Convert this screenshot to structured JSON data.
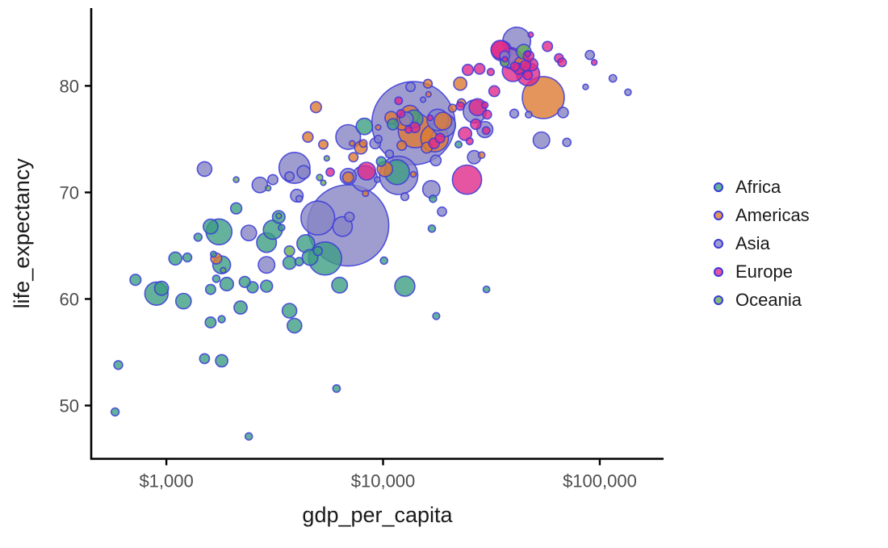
{
  "chart_data": {
    "type": "scatter",
    "title": "",
    "xlabel": "gdp_per_capita",
    "ylabel": "life_expectancy",
    "x_scale": "log10",
    "grid": false,
    "legend_position": "right",
    "xlim": [
      450,
      197000
    ],
    "ylim": [
      45.0,
      87.3
    ],
    "x_ticks": [
      {
        "value": 1000,
        "label": "$1,000"
      },
      {
        "value": 10000,
        "label": "$10,000"
      },
      {
        "value": 100000,
        "label": "$100,000"
      }
    ],
    "y_ticks": [
      {
        "value": 50,
        "label": "50"
      },
      {
        "value": 60,
        "label": "60"
      },
      {
        "value": 70,
        "label": "70"
      },
      {
        "value": 80,
        "label": "80"
      }
    ],
    "groups": [
      {
        "name": "Africa",
        "color": "#3D9E83"
      },
      {
        "name": "Americas",
        "color": "#DD7B33"
      },
      {
        "name": "Asia",
        "color": "#8785C4"
      },
      {
        "name": "Europe",
        "color": "#DE2A8A"
      },
      {
        "name": "Oceania",
        "color": "#66AC53"
      }
    ],
    "marker_stroke_color": "#3A3AD9",
    "marker_fill_opacity": 0.8,
    "point_fields": [
      "gdp_per_capita",
      "life_expectancy",
      "radius_px",
      "group_index"
    ],
    "points": [
      [
        5400,
        63.8,
        20.5,
        0
      ],
      [
        1750,
        66.3,
        16,
        0
      ],
      [
        11600,
        71.9,
        15.4,
        0
      ],
      [
        900,
        60.5,
        14.4,
        0
      ],
      [
        2900,
        65.3,
        12.2,
        0
      ],
      [
        12600,
        61.2,
        12.4,
        0
      ],
      [
        3100,
        66.5,
        11.8,
        0
      ],
      [
        1800,
        63.2,
        11,
        0
      ],
      [
        13900,
        76.9,
        11,
        0
      ],
      [
        4400,
        65.2,
        11,
        0
      ],
      [
        8200,
        76.2,
        10.2,
        0
      ],
      [
        6300,
        61.3,
        9.7,
        0
      ],
      [
        1200,
        59.8,
        9.6,
        0
      ],
      [
        4600,
        63.9,
        9.7,
        0
      ],
      [
        1600,
        66.8,
        9.1,
        0
      ],
      [
        3700,
        58.9,
        9,
        0
      ],
      [
        3900,
        57.5,
        9,
        0
      ],
      [
        950,
        61.0,
        8.6,
        0
      ],
      [
        1900,
        61.4,
        8.3,
        0
      ],
      [
        2200,
        59.2,
        8.1,
        0
      ],
      [
        1100,
        63.8,
        8,
        0
      ],
      [
        3700,
        63.4,
        8,
        0
      ],
      [
        3300,
        67.7,
        7.8,
        0
      ],
      [
        1800,
        54.2,
        7.6,
        0
      ],
      [
        600,
        53.8,
        5.4,
        0
      ],
      [
        2900,
        61.2,
        7.4,
        0
      ],
      [
        2500,
        61.1,
        6.9,
        0
      ],
      [
        2100,
        68.5,
        6.9,
        0
      ],
      [
        2300,
        61.6,
        6.8,
        0
      ],
      [
        720,
        61.8,
        6.8,
        0
      ],
      [
        11100,
        76.4,
        6.9,
        0
      ],
      [
        1600,
        57.8,
        6.7,
        0
      ],
      [
        1600,
        60.9,
        6.2,
        0
      ],
      [
        1500,
        54.4,
        6.1,
        0
      ],
      [
        9800,
        72.9,
        5.9,
        0
      ],
      [
        5000,
        64.5,
        5.5,
        0
      ],
      [
        1250,
        63.9,
        5.4,
        0
      ],
      [
        580,
        49.4,
        4.9,
        0
      ],
      [
        4100,
        63.5,
        5.1,
        0
      ],
      [
        1400,
        65.8,
        4.9,
        0
      ],
      [
        10100,
        63.6,
        4.5,
        0
      ],
      [
        1700,
        61.9,
        4.5,
        0
      ],
      [
        17000,
        69.4,
        4.5,
        0
      ],
      [
        16800,
        66.6,
        4.5,
        0
      ],
      [
        2400,
        47.1,
        4.5,
        0
      ],
      [
        1800,
        58.1,
        4.4,
        0
      ],
      [
        30000,
        60.9,
        4.1,
        0
      ],
      [
        17600,
        58.4,
        4.3,
        0
      ],
      [
        22300,
        74.5,
        4.2,
        0
      ],
      [
        6100,
        51.6,
        4.6,
        0
      ],
      [
        3400,
        66.7,
        4,
        0
      ],
      [
        1650,
        64.2,
        3.7,
        0
      ],
      [
        54900,
        78.9,
        26,
        1
      ],
      [
        14100,
        75.8,
        21.3,
        1
      ],
      [
        17300,
        75.1,
        17.1,
        1
      ],
      [
        13300,
        77.3,
        11.4,
        1
      ],
      [
        18900,
        76.7,
        10.9,
        1
      ],
      [
        44000,
        82.0,
        10.4,
        1
      ],
      [
        12300,
        76.6,
        9.9,
        1
      ],
      [
        10200,
        72.2,
        9.5,
        1
      ],
      [
        22700,
        80.2,
        8.1,
        1
      ],
      [
        7900,
        74.2,
        7.8,
        1
      ],
      [
        10900,
        77.0,
        7.8,
        1
      ],
      [
        6900,
        71.4,
        6.8,
        1
      ],
      [
        4900,
        78.0,
        6.8,
        1
      ],
      [
        1700,
        63.8,
        6.8,
        1
      ],
      [
        15900,
        74.2,
        6.7,
        1
      ],
      [
        4500,
        75.2,
        6.4,
        1
      ],
      [
        12200,
        74.4,
        5.9,
        1
      ],
      [
        5300,
        74.5,
        5.7,
        1
      ],
      [
        7300,
        73.3,
        5.7,
        1
      ],
      [
        16100,
        80.2,
        5.4,
        1
      ],
      [
        23000,
        78.4,
        5.1,
        1
      ],
      [
        20900,
        77.9,
        4.9,
        1
      ],
      [
        8100,
        74.6,
        4.7,
        1
      ],
      [
        28500,
        73.5,
        4,
        1
      ],
      [
        8300,
        69.9,
        3.7,
        1
      ],
      [
        13800,
        71.7,
        3.5,
        1
      ],
      [
        7200,
        74.6,
        3.4,
        1
      ],
      [
        16200,
        79.2,
        3.3,
        1
      ],
      [
        9500,
        76.1,
        3.3,
        1
      ],
      [
        13800,
        76.5,
        51.5,
        2
      ],
      [
        6900,
        66.9,
        50.3,
        2
      ],
      [
        11800,
        71.6,
        23.7,
        2
      ],
      [
        5000,
        67.6,
        20.9,
        2
      ],
      [
        3900,
        72.3,
        19.2,
        2
      ],
      [
        41400,
        84.2,
        17.2,
        2
      ],
      [
        8200,
        71.3,
        16,
        2
      ],
      [
        6900,
        75.2,
        15.3,
        2
      ],
      [
        19100,
        76.3,
        14.3,
        2
      ],
      [
        26500,
        77.6,
        14.3,
        2
      ],
      [
        17900,
        76.8,
        13.3,
        2
      ],
      [
        6500,
        66.8,
        12.1,
        2
      ],
      [
        38300,
        82.6,
        11.8,
        2
      ],
      [
        16700,
        70.3,
        10.7,
        2
      ],
      [
        2900,
        63.2,
        10.2,
        2
      ],
      [
        53800,
        74.9,
        10.2,
        2
      ],
      [
        6900,
        71.5,
        9.9,
        2
      ],
      [
        29500,
        75.9,
        9.9,
        2
      ],
      [
        2400,
        66.2,
        9.6,
        2
      ],
      [
        2700,
        70.7,
        9.6,
        2
      ],
      [
        1500,
        72.2,
        9,
        2
      ],
      [
        12800,
        76.9,
        8.5,
        2
      ],
      [
        26300,
        73.3,
        8.2,
        2
      ],
      [
        4300,
        71.9,
        8.1,
        2
      ],
      [
        4000,
        69.7,
        7.8,
        2
      ],
      [
        9200,
        74.6,
        6.6,
        2
      ],
      [
        17500,
        73.0,
        6.6,
        2
      ],
      [
        67700,
        77.5,
        6.5,
        2
      ],
      [
        3100,
        71.2,
        6.2,
        2
      ],
      [
        36400,
        82.8,
        6.1,
        2
      ],
      [
        7000,
        67.7,
        5.8,
        2
      ],
      [
        13400,
        79.9,
        5.7,
        2
      ],
      [
        3700,
        71.5,
        5.7,
        2
      ],
      [
        18700,
        68.2,
        5.6,
        2
      ],
      [
        90000,
        82.9,
        5.6,
        2
      ],
      [
        40300,
        77.4,
        5.4,
        2
      ],
      [
        70500,
        74.7,
        5.1,
        2
      ],
      [
        10700,
        73.6,
        5,
        2
      ],
      [
        12600,
        69.6,
        4.8,
        2
      ],
      [
        9500,
        75.0,
        4.7,
        2
      ],
      [
        115000,
        80.7,
        4.6,
        2
      ],
      [
        47000,
        77.3,
        4.1,
        2
      ],
      [
        4100,
        69.4,
        4,
        2
      ],
      [
        9400,
        71.2,
        3.5,
        2
      ],
      [
        86000,
        79.9,
        3.4,
        2
      ],
      [
        15300,
        78.7,
        3.3,
        2
      ],
      [
        135000,
        79.4,
        4,
        2
      ],
      [
        24400,
        71.2,
        18.1,
        3
      ],
      [
        46700,
        81.1,
        14.3,
        3
      ],
      [
        39700,
        81.4,
        13.1,
        3
      ],
      [
        39000,
        82.6,
        13,
        3
      ],
      [
        35200,
        83.3,
        12.5,
        3
      ],
      [
        34700,
        83.4,
        11.4,
        3
      ],
      [
        8400,
        72.0,
        11,
        3
      ],
      [
        27300,
        78.0,
        10.5,
        3
      ],
      [
        23900,
        75.5,
        8.2,
        3
      ],
      [
        48500,
        82.0,
        7.7,
        3
      ],
      [
        42300,
        81.6,
        6.8,
        3
      ],
      [
        32600,
        79.5,
        6.7,
        3
      ],
      [
        24600,
        81.5,
        6.8,
        3
      ],
      [
        27900,
        81.6,
        6.6,
        3
      ],
      [
        46900,
        82.8,
        6.6,
        3
      ],
      [
        26800,
        76.4,
        6.5,
        3
      ],
      [
        17200,
        74.6,
        6.5,
        3
      ],
      [
        45400,
        81.9,
        6.4,
        3
      ],
      [
        14000,
        76.1,
        6.4,
        3
      ],
      [
        57400,
        83.7,
        6.2,
        3
      ],
      [
        18300,
        75.1,
        5.9,
        3
      ],
      [
        46600,
        81.0,
        5.6,
        3
      ],
      [
        40600,
        81.8,
        5.5,
        3
      ],
      [
        30200,
        77.3,
        5.5,
        3
      ],
      [
        64800,
        82.6,
        5.5,
        3
      ],
      [
        67000,
        82.2,
        5.3,
        3
      ],
      [
        22700,
        78.1,
        5.1,
        3
      ],
      [
        5700,
        71.9,
        5.1,
        3
      ],
      [
        12100,
        77.4,
        4.9,
        3
      ],
      [
        11800,
        78.6,
        4.7,
        3
      ],
      [
        29900,
        75.8,
        4.7,
        3
      ],
      [
        13100,
        75.9,
        4.4,
        3
      ],
      [
        31400,
        81.3,
        4.4,
        3
      ],
      [
        25100,
        74.8,
        4.3,
        3
      ],
      [
        29500,
        78.2,
        4,
        3
      ],
      [
        16500,
        77.0,
        3.5,
        3
      ],
      [
        94300,
        82.2,
        3.5,
        3
      ],
      [
        36500,
        82.5,
        3.4,
        3
      ],
      [
        46500,
        83.0,
        3.3,
        3
      ],
      [
        48000,
        84.8,
        3.3,
        3
      ],
      [
        44600,
        83.2,
        9,
        4
      ],
      [
        36400,
        82.2,
        5.4,
        4
      ],
      [
        3700,
        64.5,
        6.3,
        4
      ],
      [
        5100,
        71.4,
        3.9,
        4
      ],
      [
        2100,
        71.2,
        3.5,
        4
      ],
      [
        2950,
        70.4,
        3.4,
        4
      ],
      [
        5500,
        73.2,
        3.3,
        4
      ],
      [
        5300,
        70.9,
        3.3,
        4
      ],
      [
        1830,
        62.7,
        3.4,
        4
      ],
      [
        3300,
        67.8,
        3.3,
        4
      ]
    ]
  },
  "styles": {
    "background": "#FFFFFF",
    "axis_line_color": "#000000",
    "tick_label_color": "#4D4D4D",
    "axis_title_color": "#1A1A1A",
    "legend_text_color": "#1A1A1A"
  }
}
